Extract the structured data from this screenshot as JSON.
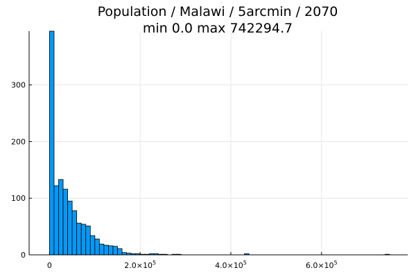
{
  "chart_data": {
    "type": "histogram",
    "title_line1": "Population / Malawi / 5arcmin / 2070",
    "title_line2": "min 0.0  max 742294.7",
    "xlabel": "",
    "ylabel": "",
    "bin_width": 10000,
    "bin_start": 0,
    "xlim": [
      -45000,
      790000
    ],
    "ylim": [
      0,
      395
    ],
    "x_ticks": [
      0,
      200000,
      400000,
      600000
    ],
    "x_tick_labels": [
      {
        "value": 0,
        "mantissa": "0",
        "exp": ""
      },
      {
        "value": 200000,
        "mantissa": "2.0×10",
        "exp": "5"
      },
      {
        "value": 400000,
        "mantissa": "4.0×10",
        "exp": "5"
      },
      {
        "value": 600000,
        "mantissa": "6.0×10",
        "exp": "5"
      }
    ],
    "y_ticks": [
      0,
      100,
      200,
      300
    ],
    "y_tick_labels": [
      "0",
      "100",
      "200",
      "300"
    ],
    "bars": [
      {
        "x0": 0,
        "count": 395
      },
      {
        "x0": 10000,
        "count": 122
      },
      {
        "x0": 20000,
        "count": 133
      },
      {
        "x0": 30000,
        "count": 116
      },
      {
        "x0": 40000,
        "count": 95
      },
      {
        "x0": 50000,
        "count": 78
      },
      {
        "x0": 60000,
        "count": 56
      },
      {
        "x0": 70000,
        "count": 54
      },
      {
        "x0": 80000,
        "count": 51
      },
      {
        "x0": 90000,
        "count": 34
      },
      {
        "x0": 100000,
        "count": 28
      },
      {
        "x0": 110000,
        "count": 19
      },
      {
        "x0": 120000,
        "count": 17
      },
      {
        "x0": 130000,
        "count": 16
      },
      {
        "x0": 140000,
        "count": 15
      },
      {
        "x0": 150000,
        "count": 11
      },
      {
        "x0": 160000,
        "count": 4
      },
      {
        "x0": 170000,
        "count": 3
      },
      {
        "x0": 180000,
        "count": 2
      },
      {
        "x0": 190000,
        "count": 2
      },
      {
        "x0": 200000,
        "count": 1
      },
      {
        "x0": 210000,
        "count": 1
      },
      {
        "x0": 220000,
        "count": 2
      },
      {
        "x0": 230000,
        "count": 2
      },
      {
        "x0": 240000,
        "count": 1
      },
      {
        "x0": 250000,
        "count": 1
      },
      {
        "x0": 270000,
        "count": 1
      },
      {
        "x0": 280000,
        "count": 1
      },
      {
        "x0": 430000,
        "count": 2
      },
      {
        "x0": 740000,
        "count": 1
      }
    ],
    "grid": true,
    "legend": "none",
    "colors": {
      "bar_fill": "#009af9",
      "bar_stroke": "#000000",
      "grid": "#e6e6e6"
    }
  }
}
